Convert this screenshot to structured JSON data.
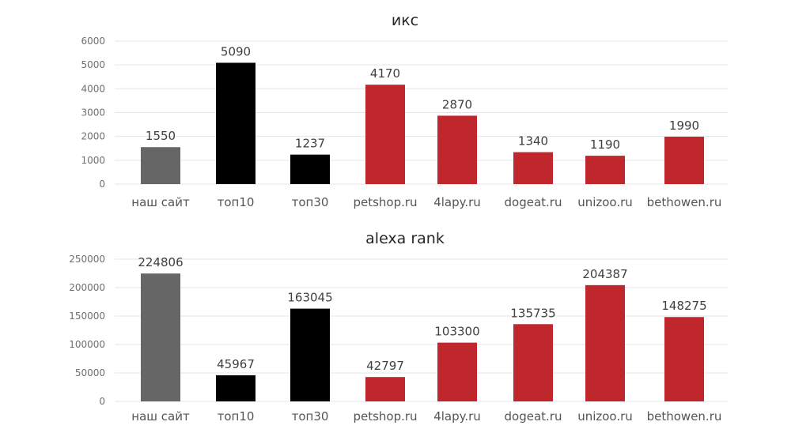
{
  "colors": {
    "own": "#666666",
    "top": "#000000",
    "competitor": "#c0272d"
  },
  "chart_data": [
    {
      "type": "bar",
      "title": "икс",
      "categories": [
        "наш сайт",
        "топ10",
        "топ30",
        "petshop.ru",
        "4lapy.ru",
        "dogeat.ru",
        "unizoo.ru",
        "bethowen.ru"
      ],
      "values": [
        1550,
        5090,
        1237,
        4170,
        2870,
        1340,
        1190,
        1990
      ],
      "data_labels": [
        "1550",
        "5090",
        "1237",
        "4170",
        "2870",
        "1340",
        "1190",
        "1990"
      ],
      "bar_colors": [
        "own",
        "top",
        "top",
        "competitor",
        "competitor",
        "competitor",
        "competitor",
        "competitor"
      ],
      "ylim": [
        0,
        6000
      ],
      "yticks": [
        "0",
        "1000",
        "2000",
        "3000",
        "4000",
        "5000",
        "6000"
      ],
      "grid": true
    },
    {
      "type": "bar",
      "title": "alexa rank",
      "categories": [
        "наш сайт",
        "топ10",
        "топ30",
        "petshop.ru",
        "4lapy.ru",
        "dogeat.ru",
        "unizoo.ru",
        "bethowen.ru"
      ],
      "values": [
        224806,
        45967,
        163045,
        42797,
        103300,
        135735,
        204387,
        148275
      ],
      "data_labels": [
        "224806",
        "45967",
        "163045",
        "42797",
        "103300",
        "135735",
        "204387",
        "148275"
      ],
      "bar_colors": [
        "own",
        "top",
        "top",
        "competitor",
        "competitor",
        "competitor",
        "competitor",
        "competitor"
      ],
      "ylim": [
        0,
        250000
      ],
      "yticks": [
        "0",
        "50000",
        "100000",
        "150000",
        "200000",
        "250000"
      ],
      "grid": true
    }
  ]
}
